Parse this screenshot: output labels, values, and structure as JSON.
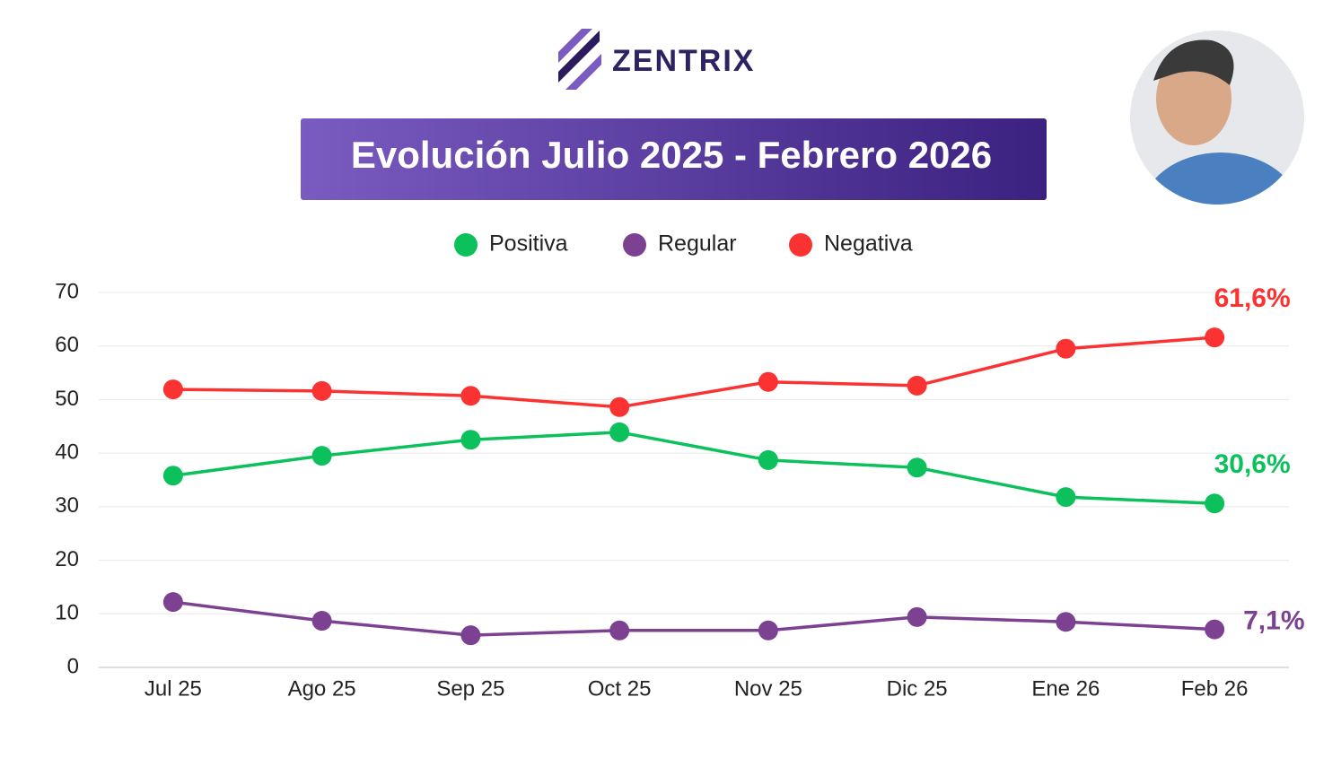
{
  "logo": {
    "text": "ZENTRIX"
  },
  "chart_data": {
    "type": "line",
    "title": "Evolución Julio 2025 - Febrero 2026",
    "categories": [
      "Jul 25",
      "Ago 25",
      "Sep 25",
      "Oct 25",
      "Nov 25",
      "Dic 25",
      "Ene 26",
      "Feb 26"
    ],
    "series": [
      {
        "name": "Positiva",
        "color": "#0cc05c",
        "values": [
          35.8,
          39.5,
          42.5,
          43.9,
          38.7,
          37.3,
          31.8,
          30.6
        ],
        "value_labels": [
          null,
          null,
          null,
          null,
          null,
          null,
          null,
          "30,6%"
        ]
      },
      {
        "name": "Regular",
        "color": "#7c4191",
        "values": [
          12.2,
          8.7,
          6.0,
          6.9,
          6.9,
          9.4,
          8.5,
          7.1
        ],
        "value_labels": [
          null,
          null,
          null,
          null,
          null,
          null,
          null,
          "7,1%"
        ]
      },
      {
        "name": "Negativa",
        "color": "#fa3232",
        "values": [
          51.9,
          51.6,
          50.7,
          48.6,
          53.3,
          52.6,
          59.5,
          61.6
        ],
        "value_labels": [
          null,
          null,
          null,
          null,
          null,
          null,
          null,
          "61,6%"
        ]
      }
    ],
    "ylim": [
      0,
      70
    ],
    "yticks": [
      0,
      10,
      20,
      30,
      40,
      50,
      60,
      70
    ],
    "grid": true,
    "legend": "top"
  }
}
